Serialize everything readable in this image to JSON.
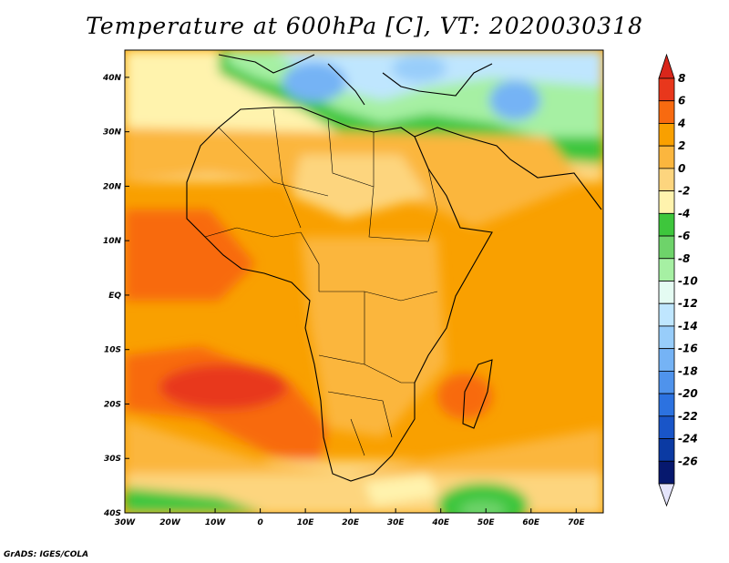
{
  "title": "Temperature at 600hPa [C], VT: 2020030318",
  "footer": "GrADS: IGES/COLA",
  "map": {
    "lon_range": [
      -30,
      76
    ],
    "lat_range": [
      -40,
      45
    ],
    "lon_ticks": [
      {
        "value": -30,
        "label": "30W"
      },
      {
        "value": -20,
        "label": "20W"
      },
      {
        "value": -10,
        "label": "10W"
      },
      {
        "value": 0,
        "label": "0"
      },
      {
        "value": 10,
        "label": "10E"
      },
      {
        "value": 20,
        "label": "20E"
      },
      {
        "value": 30,
        "label": "30E"
      },
      {
        "value": 40,
        "label": "40E"
      },
      {
        "value": 50,
        "label": "50E"
      },
      {
        "value": 60,
        "label": "60E"
      },
      {
        "value": 70,
        "label": "70E"
      }
    ],
    "lat_ticks": [
      {
        "value": 40,
        "label": "40N"
      },
      {
        "value": 30,
        "label": "30N"
      },
      {
        "value": 20,
        "label": "20N"
      },
      {
        "value": 10,
        "label": "10N"
      },
      {
        "value": 0,
        "label": "EQ"
      },
      {
        "value": -10,
        "label": "10S"
      },
      {
        "value": -20,
        "label": "20S"
      },
      {
        "value": -30,
        "label": "30S"
      },
      {
        "value": -40,
        "label": "40S"
      }
    ]
  },
  "colorbar": {
    "levels": [
      {
        "label": "8",
        "color": "#e8371c"
      },
      {
        "label": "6",
        "color": "#f86a10"
      },
      {
        "label": "4",
        "color": "#f9a000"
      },
      {
        "label": "2",
        "color": "#fbb63e"
      },
      {
        "label": "0",
        "color": "#fdd57e"
      },
      {
        "label": "-2",
        "color": "#fff3ad"
      },
      {
        "label": "-4",
        "color": "#3ec63c"
      },
      {
        "label": "-6",
        "color": "#6ed36a"
      },
      {
        "label": "-8",
        "color": "#a6f0a3"
      },
      {
        "label": "-10",
        "color": "#e4fbf2"
      },
      {
        "label": "-12",
        "color": "#bfe6fe"
      },
      {
        "label": "-14",
        "color": "#98cdfa"
      },
      {
        "label": "-16",
        "color": "#75b3f5"
      },
      {
        "label": "-18",
        "color": "#4f93ec"
      },
      {
        "label": "-20",
        "color": "#2c72e0"
      },
      {
        "label": "-22",
        "color": "#1955c8"
      },
      {
        "label": "-24",
        "color": "#0b3aa3"
      },
      {
        "label": "-26",
        "color": "#06186e"
      }
    ],
    "top_triangle_color": "#d9261b",
    "bottom_triangle_color": "#e4e4fb"
  }
}
